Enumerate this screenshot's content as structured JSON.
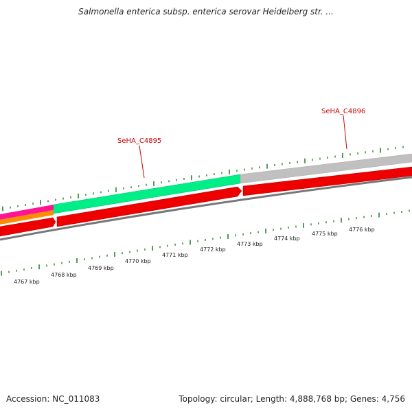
{
  "title": "Salmonella enterica subsp. enterica serovar Heidelberg str. ...",
  "footer": {
    "accession": "Accession: NC_011083",
    "summary": "Topology: circular; Length: 4,888,768 bp; Genes: 4,756"
  },
  "genes": [
    {
      "label": "SeHA_C4895",
      "color": "#00ee88"
    },
    {
      "label": "SeHA_C4896",
      "color": "#c0c0c0"
    }
  ],
  "scale_labels": [
    "4767 kbp",
    "4768 kbp",
    "4769 kbp",
    "4770 kbp",
    "4771 kbp",
    "4772 kbp",
    "4773 kbp",
    "4774 kbp",
    "4775 kbp",
    "4776 kbp"
  ],
  "colors": {
    "pink_feature": "#ff1493",
    "orange_feature": "#ff8c00",
    "cds_red": "#ee0000",
    "backbone": "#777777",
    "ticks": "#1a7a1a"
  }
}
